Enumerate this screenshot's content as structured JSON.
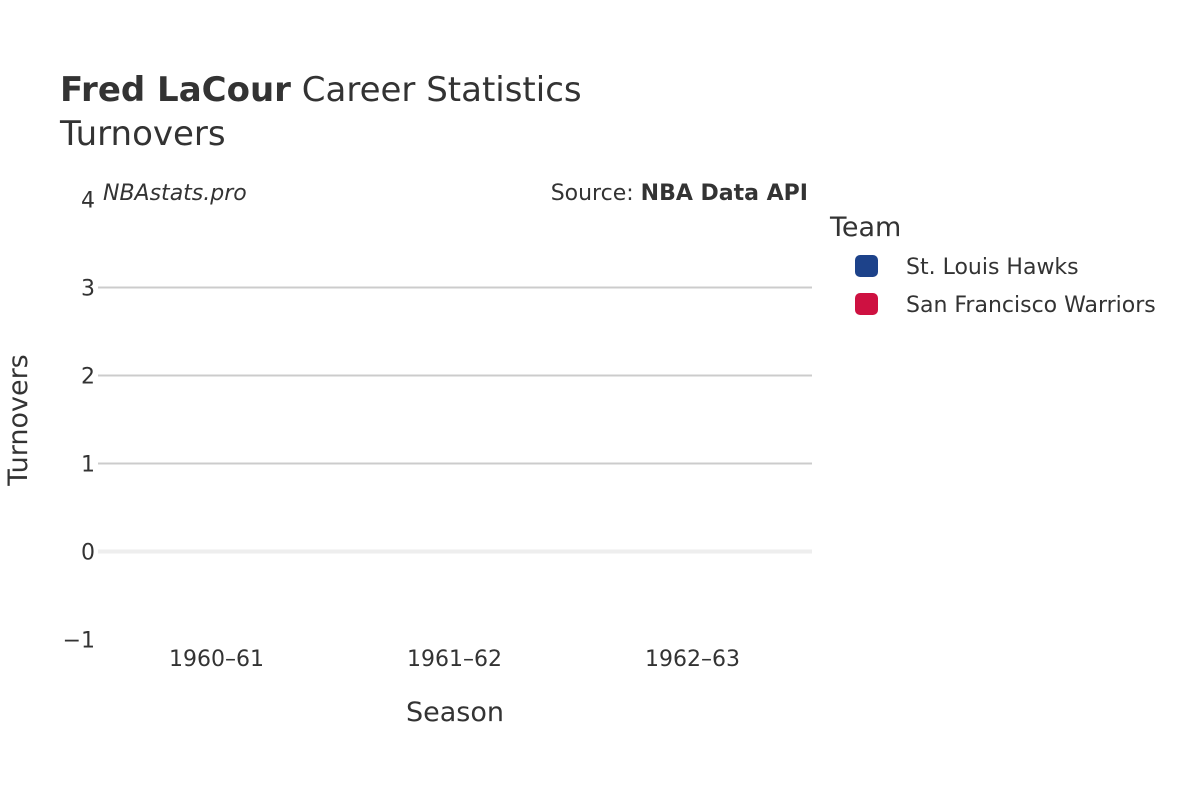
{
  "title": {
    "player": "Fred LaCour",
    "suffix": "Career Statistics",
    "subtitle": "Turnovers"
  },
  "watermark": {
    "site": "NBAstats.pro",
    "source_prefix": "Source: ",
    "source_name": "NBA Data API"
  },
  "legend": {
    "title": "Team",
    "placement": "right"
  },
  "colors": {
    "grid": "#cccccc",
    "zero_line": "#eeeeee",
    "text": "#333333"
  },
  "chart_data": {
    "type": "bar",
    "title": "Fred LaCour Career Statistics",
    "subtitle": "Turnovers",
    "xlabel": "Season",
    "ylabel": "Turnovers",
    "categories": [
      "1960–61",
      "1961–62",
      "1962–63"
    ],
    "ylim": [
      -1,
      4
    ],
    "yticks": [
      -1,
      0,
      1,
      2,
      3,
      4
    ],
    "ytick_labels": [
      "−1",
      "0",
      "1",
      "2",
      "3",
      "4"
    ],
    "grid": true,
    "series": [
      {
        "name": "St. Louis Hawks",
        "color": "#1d428a",
        "values": [
          null,
          null,
          null
        ]
      },
      {
        "name": "San Francisco Warriors",
        "color": "#ce1141",
        "values": [
          null,
          null,
          null
        ]
      }
    ]
  }
}
